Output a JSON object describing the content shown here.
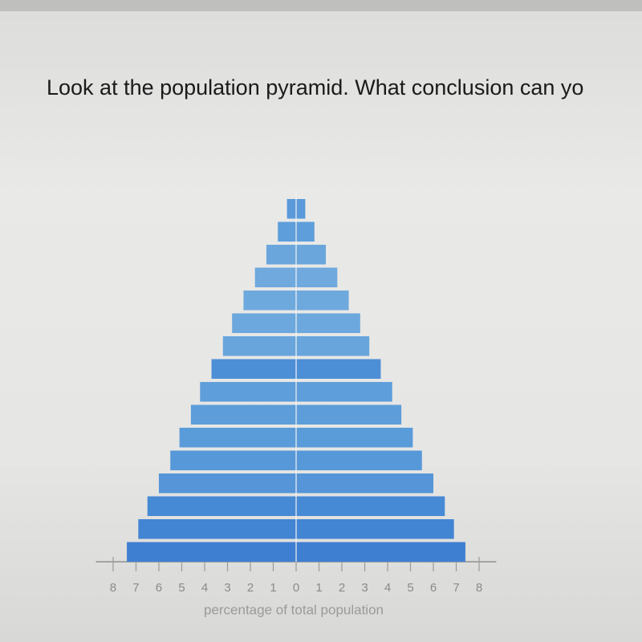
{
  "question": "Look at the population pyramid. What conclusion can yo",
  "chart_data": {
    "type": "pyramid",
    "x_label": "percentage of total population",
    "categories": [
      null,
      null,
      null,
      null,
      null,
      null,
      null,
      null,
      null,
      null,
      null,
      null,
      null,
      null,
      null,
      null
    ],
    "colors": [
      "#3f7fd1",
      "#4285d3",
      "#4689d4",
      "#5595d8",
      "#5798d9",
      "#5a9bd9",
      "#5c9dda",
      "#5e9eda",
      "#4d8fd6",
      "#68a5dc",
      "#6ca7dd",
      "#6ea9dd",
      "#6fa9dd",
      "#6aa6dc",
      "#5e9edb",
      "#5a9ada"
    ],
    "series": [
      {
        "side": "left",
        "values": [
          7.4,
          6.9,
          6.5,
          6.0,
          5.5,
          5.1,
          4.6,
          4.2,
          3.7,
          3.2,
          2.8,
          2.3,
          1.8,
          1.3,
          0.8,
          0.4
        ]
      },
      {
        "side": "right",
        "values": [
          7.4,
          6.9,
          6.5,
          6.0,
          5.5,
          5.1,
          4.6,
          4.2,
          3.7,
          3.2,
          2.8,
          2.3,
          1.8,
          1.3,
          0.8,
          0.4
        ]
      }
    ],
    "xlim": [
      -8.75,
      8.75
    ],
    "xticks": [
      {
        "value": -8,
        "label": "8"
      },
      {
        "value": -7,
        "label": "7"
      },
      {
        "value": -6,
        "label": "6"
      },
      {
        "value": -5,
        "label": "5"
      },
      {
        "value": -4,
        "label": "4"
      },
      {
        "value": -3,
        "label": "3"
      },
      {
        "value": -2,
        "label": "2"
      },
      {
        "value": -1,
        "label": "1"
      },
      0,
      1,
      2,
      3,
      4,
      5,
      6,
      7,
      8
    ]
  }
}
